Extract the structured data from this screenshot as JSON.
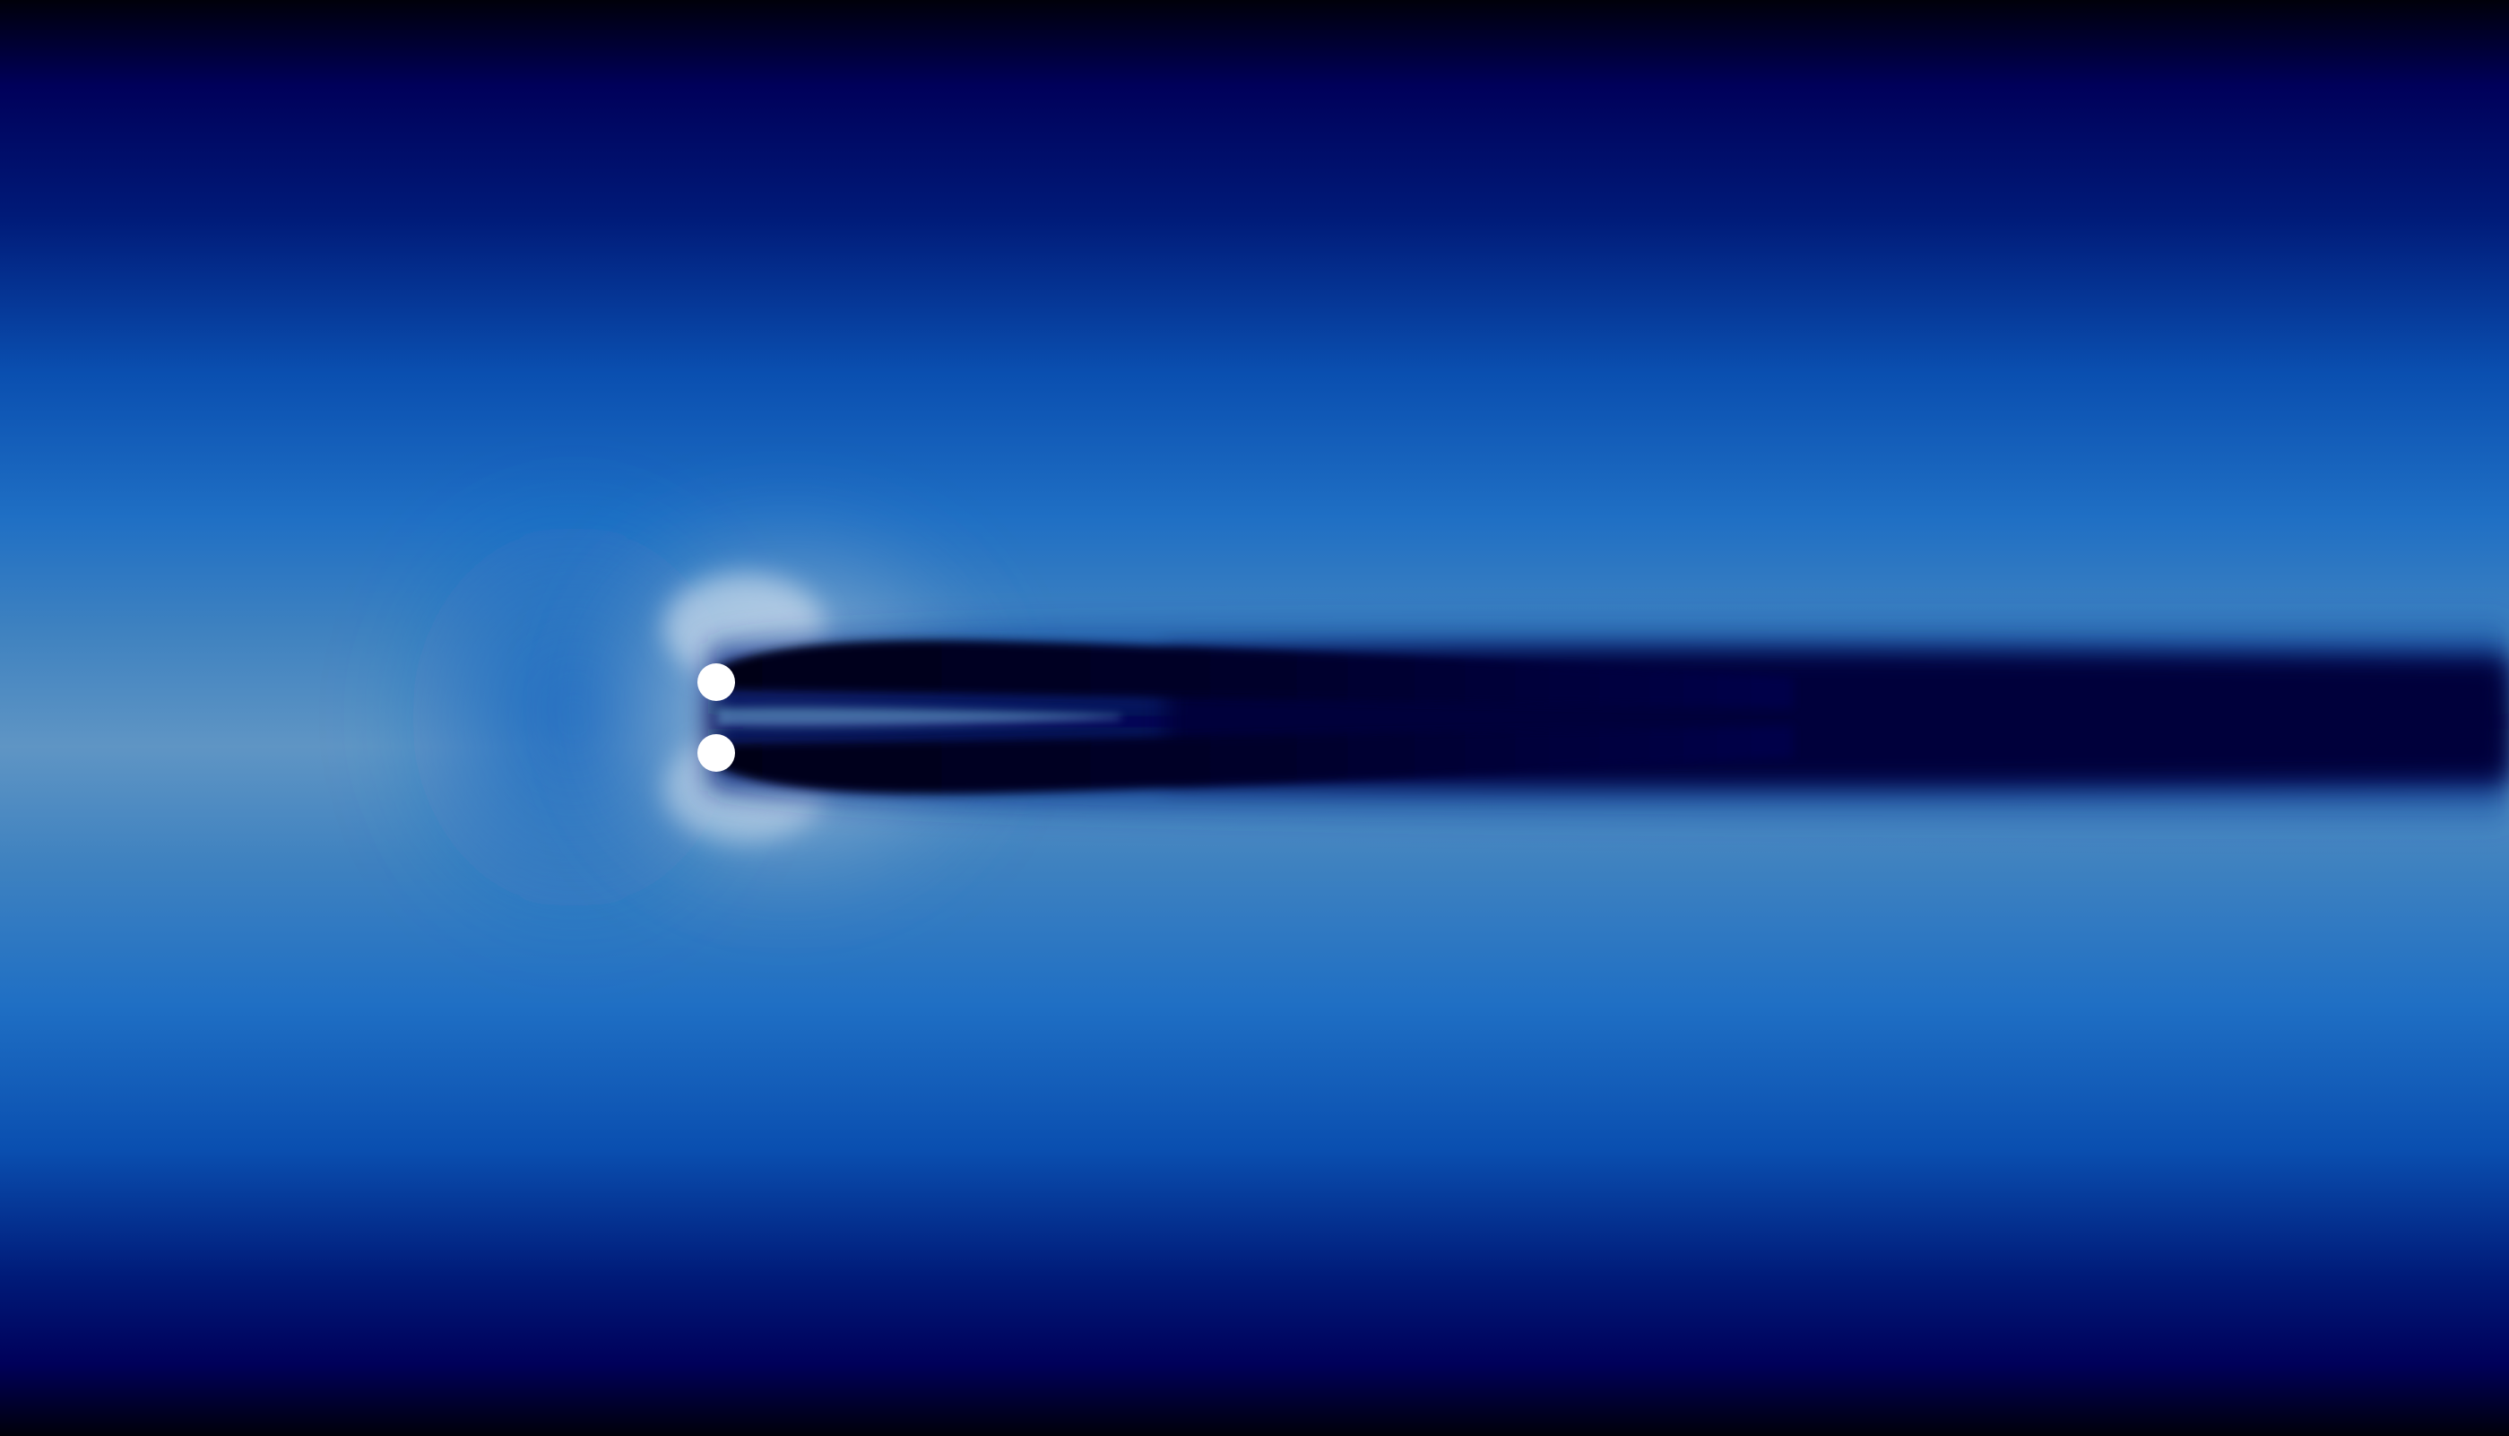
{
  "scene": {
    "description_name": "velocity-magnitude-field",
    "colors": {
      "edge_dark": "#00000a",
      "deep_navy": "#00005a",
      "navy": "#001a78",
      "royal_blue": "#0a4fb0",
      "mid_blue": "#1f6fc4",
      "steel_blue": "#3f82c0",
      "pale_blue": "#5f95c4",
      "highlight": "#d8e4ee",
      "wake_core": "#000018",
      "wake_inner": "#00034a",
      "cylinder_fill": "#ffffff"
    },
    "cylinders": [
      {
        "id": "upper",
        "name": "upper-cylinder"
      },
      {
        "id": "lower",
        "name": "lower-cylinder"
      }
    ]
  }
}
